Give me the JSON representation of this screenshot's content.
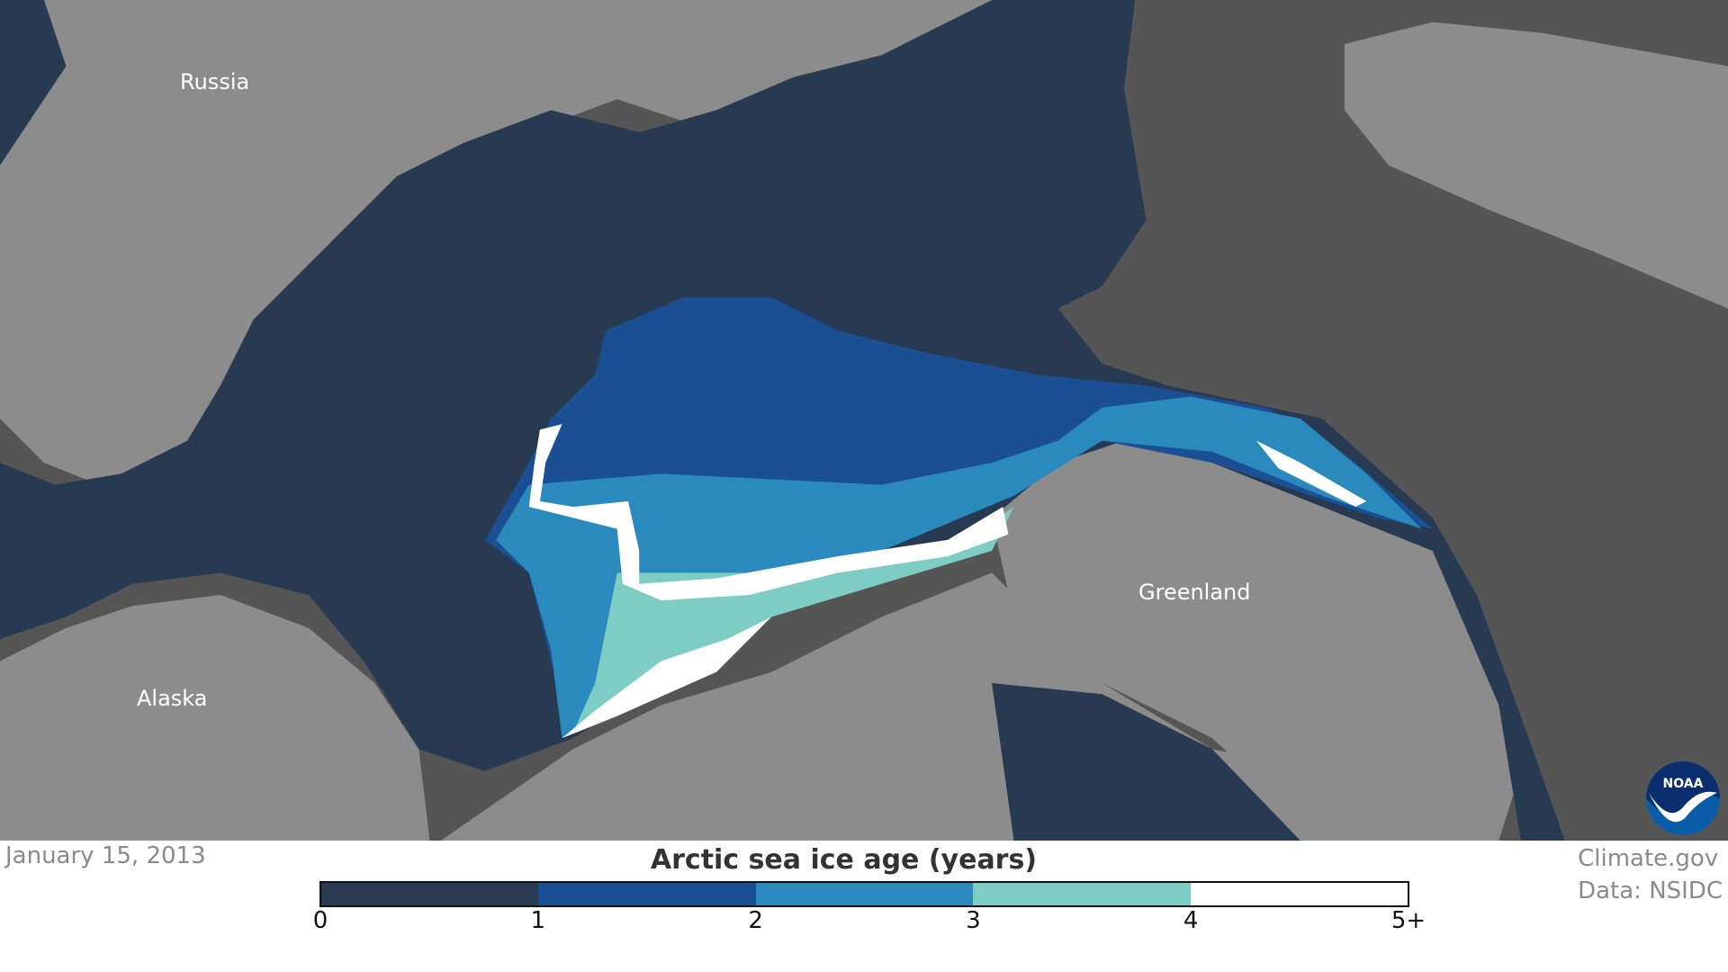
{
  "map": {
    "labels": {
      "russia": "Russia",
      "alaska": "Alaska",
      "greenland": "Greenland"
    },
    "colors": {
      "land": "#8c8c8c",
      "outer_sea": "#555555",
      "arctic_ocean": "#283a52"
    }
  },
  "date": "January 15, 2013",
  "credit": {
    "line1": "Climate.gov",
    "line2": "Data: NSIDC"
  },
  "logo": "NOAA",
  "legend": {
    "title": "Arctic sea ice age (years)",
    "bins": [
      {
        "range": "0-1",
        "color": "#293a52"
      },
      {
        "range": "1-2",
        "color": "#1a5093"
      },
      {
        "range": "2-3",
        "color": "#2b8abd"
      },
      {
        "range": "3-4",
        "color": "#7dcdc4"
      },
      {
        "range": "4-5+",
        "color": "#ffffff"
      }
    ],
    "ticks": [
      "0",
      "1",
      "2",
      "3",
      "4",
      "5+"
    ]
  }
}
